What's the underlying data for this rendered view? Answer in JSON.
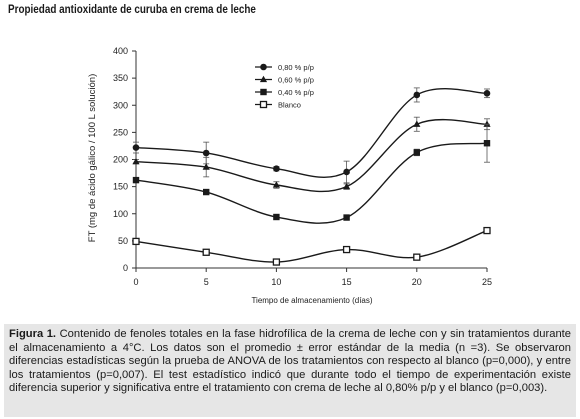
{
  "header": {
    "title": "Propiedad antioxidante de curuba en crema de leche"
  },
  "caption": {
    "label": "Figura 1.",
    "text": "Contenido de fenoles totales en la fase hidrofílica de la crema de leche con y sin tratamientos durante el almacenamiento a 4°C. Los datos son el promedio ± error estándar de la media (n =3). Se observaron diferencias estadísticas según la prueba de ANOVA de los tratamientos con respecto al blanco (p=0,000), y entre los tratamientos (p=0,007). El test estadístico indicó que durante todo el tiempo de experimentación existe diferencia superior y significativa entre el tratamiento con crema de leche al 0,80% p/p y el blanco (p=0,003)."
  },
  "chart_data": {
    "type": "line",
    "xlabel": "Tiempo de almacenamiento (días)",
    "ylabel": "FT (mg de ácido gálico / 100 L solución)",
    "x": [
      0,
      5,
      10,
      15,
      20,
      25
    ],
    "xticks": [
      "0",
      "5",
      "10",
      "15",
      "20",
      "25"
    ],
    "yticks": [
      "0",
      "50",
      "100",
      "150",
      "200",
      "250",
      "300",
      "350",
      "400"
    ],
    "xlim": [
      0,
      25
    ],
    "ylim": [
      0,
      400
    ],
    "grid": false,
    "legend_position": "upper-left",
    "series": [
      {
        "name": "0,80 % p/p",
        "marker": "circle",
        "color": "#1a1a1a",
        "values": [
          222,
          212,
          183,
          177,
          319,
          322
        ],
        "errors": [
          10,
          20,
          4,
          20,
          13,
          8
        ]
      },
      {
        "name": "0,60 % p/p",
        "marker": "triangle",
        "color": "#1a1a1a",
        "values": [
          196,
          186,
          153,
          150,
          265,
          265
        ],
        "errors": [
          4,
          18,
          6,
          5,
          13,
          10
        ]
      },
      {
        "name": "0,40 % p/p",
        "marker": "square",
        "color": "#1a1a1a",
        "values": [
          162,
          140,
          94,
          93,
          213,
          230
        ],
        "errors": [
          3,
          4,
          4,
          3,
          6,
          35
        ]
      },
      {
        "name": "Blanco",
        "marker": "open-square",
        "color": "#1a1a1a",
        "values": [
          49,
          29,
          11,
          34,
          20,
          69
        ],
        "errors": [
          3,
          3,
          2,
          3,
          3,
          4
        ]
      }
    ]
  }
}
